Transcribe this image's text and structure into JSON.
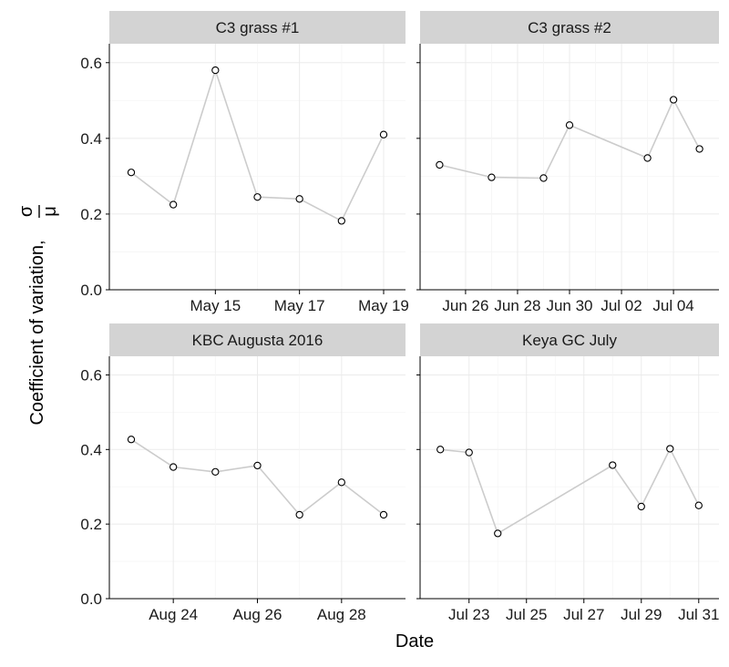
{
  "chart_data": [
    {
      "type": "line",
      "title": "C3 grass #1",
      "x_tick_labels": [
        "May 15",
        "May 17",
        "May 19"
      ],
      "x": [
        "2017-05-13",
        "2017-05-14",
        "2017-05-15",
        "2017-05-16",
        "2017-05-17",
        "2017-05-18",
        "2017-05-19"
      ],
      "values": [
        0.31,
        0.225,
        0.58,
        0.245,
        0.24,
        0.182,
        0.41
      ]
    },
    {
      "type": "line",
      "title": "C3 grass #2",
      "x_tick_labels": [
        "Jun 26",
        "Jun 28",
        "Jun 30",
        "Jul 02",
        "Jul 04"
      ],
      "x": [
        "2017-06-25",
        "2017-06-27",
        "2017-06-29",
        "2017-06-30",
        "2017-07-03",
        "2017-07-04",
        "2017-07-05"
      ],
      "values": [
        0.33,
        0.297,
        0.295,
        0.435,
        0.348,
        0.502,
        0.372
      ]
    },
    {
      "type": "line",
      "title": "KBC Augusta 2016",
      "x_tick_labels": [
        "Aug 24",
        "Aug 26",
        "Aug 28"
      ],
      "x": [
        "2016-08-23",
        "2016-08-24",
        "2016-08-25",
        "2016-08-26",
        "2016-08-27",
        "2016-08-28",
        "2016-08-29"
      ],
      "values": [
        0.427,
        0.353,
        0.34,
        0.357,
        0.225,
        0.312,
        0.225
      ]
    },
    {
      "type": "line",
      "title": "Keya GC July",
      "x_tick_labels": [
        "Jul 23",
        "Jul 25",
        "Jul 27",
        "Jul 29",
        "Jul 31"
      ],
      "x": [
        "2017-07-22",
        "2017-07-23",
        "2017-07-24",
        "2017-07-28",
        "2017-07-29",
        "2017-07-30",
        "2017-07-31"
      ],
      "values": [
        0.4,
        0.392,
        0.175,
        0.358,
        0.247,
        0.402,
        0.25
      ]
    }
  ],
  "shared": {
    "xlabel": "Date",
    "ylabel_text": "Coefficient of variation,",
    "ylabel_numerator": "σ",
    "ylabel_denominator": "μ",
    "ylim": [
      0,
      0.65
    ],
    "y_ticks": [
      0.0,
      0.2,
      0.4,
      0.6
    ],
    "y_tick_labels": [
      "0.0",
      "0.2",
      "0.4",
      "0.6"
    ],
    "grid": true,
    "colors": {
      "line": "#cccccc",
      "marker_edge": "#000000",
      "strip_bg": "#d3d3d3",
      "grid": "#ebebeb",
      "axis": "#000000"
    }
  }
}
